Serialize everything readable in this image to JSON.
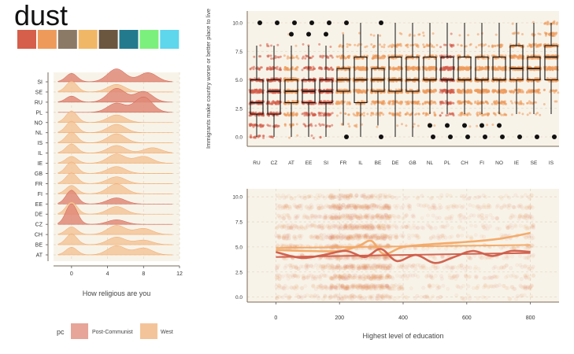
{
  "title": "dust",
  "palette": [
    "#d55f4b",
    "#ee9a5b",
    "#8b7a66",
    "#f0b766",
    "#6b5640",
    "#237a8c",
    "#7cf07c",
    "#5ed6ec"
  ],
  "groups": {
    "post": "#e08a78",
    "west": "#f3c49a",
    "post_line": "#cf5c49",
    "west_line": "#f2a865"
  },
  "chart_data": [
    {
      "type": "ridgeline",
      "xlabel": "How religious are you",
      "xlim": [
        -2,
        12
      ],
      "xticks": [
        0,
        4,
        8,
        12
      ],
      "countries": [
        "SI",
        "SE",
        "RU",
        "PL",
        "NO",
        "NL",
        "IS",
        "IL",
        "IE",
        "GB",
        "FR",
        "FI",
        "EE",
        "DE",
        "CZ",
        "CH",
        "BE",
        "AT"
      ],
      "group": [
        "Post-Communist",
        "West",
        "Post-Communist",
        "Post-Communist",
        "West",
        "West",
        "West",
        "West",
        "West",
        "West",
        "West",
        "West",
        "Post-Communist",
        "West",
        "Post-Communist",
        "West",
        "West",
        "West"
      ],
      "peaks": [
        [
          [
            0,
            0.55
          ],
          [
            5,
            0.85
          ],
          [
            8.5,
            0.6
          ]
        ],
        [
          [
            0,
            0.7
          ],
          [
            5,
            0.5
          ]
        ],
        [
          [
            0,
            0.4
          ],
          [
            5,
            0.9
          ],
          [
            8,
            0.7
          ]
        ],
        [
          [
            5,
            0.6
          ],
          [
            8,
            1.0
          ]
        ],
        [
          [
            0,
            0.75
          ],
          [
            5,
            0.5
          ]
        ],
        [
          [
            0,
            0.75
          ],
          [
            5,
            0.55
          ]
        ],
        [
          [
            0,
            0.7
          ],
          [
            5,
            0.6
          ]
        ],
        [
          [
            0,
            0.6
          ],
          [
            5,
            0.5
          ],
          [
            9,
            0.35
          ]
        ],
        [
          [
            0,
            0.45
          ],
          [
            5,
            0.6
          ],
          [
            8,
            0.45
          ]
        ],
        [
          [
            0,
            0.75
          ],
          [
            5,
            0.45
          ]
        ],
        [
          [
            0,
            0.7
          ],
          [
            5,
            0.45
          ]
        ],
        [
          [
            0,
            0.55
          ],
          [
            5,
            0.65
          ]
        ],
        [
          [
            0,
            0.9
          ],
          [
            5,
            0.4
          ]
        ],
        [
          [
            0,
            0.8
          ],
          [
            5,
            0.5
          ]
        ],
        [
          [
            0,
            1.35
          ],
          [
            5,
            0.3
          ]
        ],
        [
          [
            0,
            0.5
          ],
          [
            5,
            0.6
          ],
          [
            8,
            0.4
          ]
        ],
        [
          [
            0,
            0.7
          ],
          [
            5,
            0.5
          ],
          [
            8,
            0.3
          ]
        ],
        [
          [
            0,
            0.5
          ],
          [
            5,
            0.6
          ],
          [
            8,
            0.45
          ]
        ]
      ]
    },
    {
      "type": "boxplot",
      "ylabel": "Immigrants make country worse or better place to live",
      "ylim": [
        0,
        10
      ],
      "yticks": [
        "0.0",
        "2.5",
        "5.0",
        "7.5",
        "10.0"
      ],
      "categories": [
        "RU",
        "CZ",
        "AT",
        "EE",
        "SI",
        "FR",
        "IL",
        "BE",
        "DE",
        "GB",
        "NL",
        "PL",
        "CH",
        "FI",
        "NO",
        "IE",
        "SE",
        "IS"
      ],
      "group": [
        "Post-Communist",
        "Post-Communist",
        "West",
        "Post-Communist",
        "Post-Communist",
        "West",
        "West",
        "West",
        "West",
        "West",
        "West",
        "Post-Communist",
        "West",
        "West",
        "West",
        "West",
        "West",
        "West"
      ],
      "boxes": [
        {
          "lo": 0,
          "q1": 2,
          "med": 3,
          "q3": 5,
          "hi": 8,
          "out": [
            10
          ]
        },
        {
          "lo": 0,
          "q1": 2,
          "med": 4,
          "q3": 5,
          "hi": 8,
          "out": [
            10
          ]
        },
        {
          "lo": 0,
          "q1": 3,
          "med": 4,
          "q3": 5,
          "hi": 8,
          "out": [
            9,
            10
          ]
        },
        {
          "lo": 0,
          "q1": 3,
          "med": 4,
          "q3": 5,
          "hi": 8,
          "out": [
            9,
            10
          ]
        },
        {
          "lo": 0,
          "q1": 3,
          "med": 4,
          "q3": 5,
          "hi": 8,
          "out": [
            9,
            10
          ]
        },
        {
          "lo": 1,
          "q1": 4,
          "med": 5,
          "q3": 6,
          "hi": 9,
          "out": [
            0,
            10
          ]
        },
        {
          "lo": 0,
          "q1": 3,
          "med": 5,
          "q3": 7,
          "hi": 10,
          "out": []
        },
        {
          "lo": 1,
          "q1": 4,
          "med": 5,
          "q3": 6,
          "hi": 9,
          "out": [
            0,
            10
          ]
        },
        {
          "lo": 0,
          "q1": 4,
          "med": 5,
          "q3": 7,
          "hi": 10,
          "out": []
        },
        {
          "lo": 0,
          "q1": 4,
          "med": 5,
          "q3": 7,
          "hi": 10,
          "out": []
        },
        {
          "lo": 2,
          "q1": 5,
          "med": 5,
          "q3": 7,
          "hi": 10,
          "out": [
            0,
            1
          ]
        },
        {
          "lo": 2,
          "q1": 5,
          "med": 5,
          "q3": 7,
          "hi": 10,
          "out": [
            0,
            1
          ]
        },
        {
          "lo": 2,
          "q1": 5,
          "med": 5,
          "q3": 7,
          "hi": 10,
          "out": [
            0,
            1
          ]
        },
        {
          "lo": 2,
          "q1": 5,
          "med": 5,
          "q3": 7,
          "hi": 10,
          "out": [
            0,
            1
          ]
        },
        {
          "lo": 2,
          "q1": 5,
          "med": 5,
          "q3": 7,
          "hi": 10,
          "out": [
            0,
            1
          ]
        },
        {
          "lo": 2,
          "q1": 5,
          "med": 6,
          "q3": 8,
          "hi": 10,
          "out": [
            0
          ]
        },
        {
          "lo": 2,
          "q1": 5,
          "med": 6,
          "q3": 7,
          "hi": 10,
          "out": [
            0
          ]
        },
        {
          "lo": 2,
          "q1": 5,
          "med": 7,
          "q3": 8,
          "hi": 10,
          "out": [
            0
          ]
        }
      ]
    },
    {
      "type": "scatter",
      "xlabel": "Highest level of education",
      "xlim": [
        -90,
        890
      ],
      "ylim": [
        -0.5,
        10.8
      ],
      "xticks": [
        0,
        200,
        400,
        600,
        800
      ],
      "yticks": [
        "0.0",
        "2.5",
        "5.0",
        "7.5",
        "10.0"
      ],
      "smooth": [
        {
          "group": "West",
          "points": [
            [
              0,
              4.7
            ],
            [
              100,
              4.6
            ],
            [
              200,
              4.6
            ],
            [
              260,
              5.1
            ],
            [
              300,
              5.6
            ],
            [
              340,
              4.3
            ],
            [
              400,
              5.0
            ],
            [
              500,
              5.3
            ],
            [
              600,
              5.5
            ],
            [
              700,
              5.8
            ],
            [
              800,
              6.4
            ]
          ]
        },
        {
          "group": "Post-Communist",
          "points": [
            [
              0,
              4.5
            ],
            [
              80,
              3.9
            ],
            [
              150,
              4.2
            ],
            [
              220,
              4.6
            ],
            [
              280,
              4.0
            ],
            [
              330,
              4.8
            ],
            [
              380,
              3.6
            ],
            [
              440,
              4.2
            ],
            [
              500,
              3.4
            ],
            [
              560,
              4.0
            ],
            [
              620,
              4.6
            ],
            [
              680,
              4.1
            ],
            [
              740,
              4.6
            ],
            [
              800,
              4.5
            ]
          ]
        },
        {
          "group": "Post-Communist",
          "flat": true,
          "points": [
            [
              0,
              4.0
            ],
            [
              800,
              4.4
            ]
          ]
        },
        {
          "group": "West",
          "flat": true,
          "points": [
            [
              0,
              4.9
            ],
            [
              800,
              5.2
            ]
          ]
        }
      ]
    }
  ],
  "legend": {
    "title": "pc",
    "items": [
      "Post-Communist",
      "West"
    ]
  }
}
